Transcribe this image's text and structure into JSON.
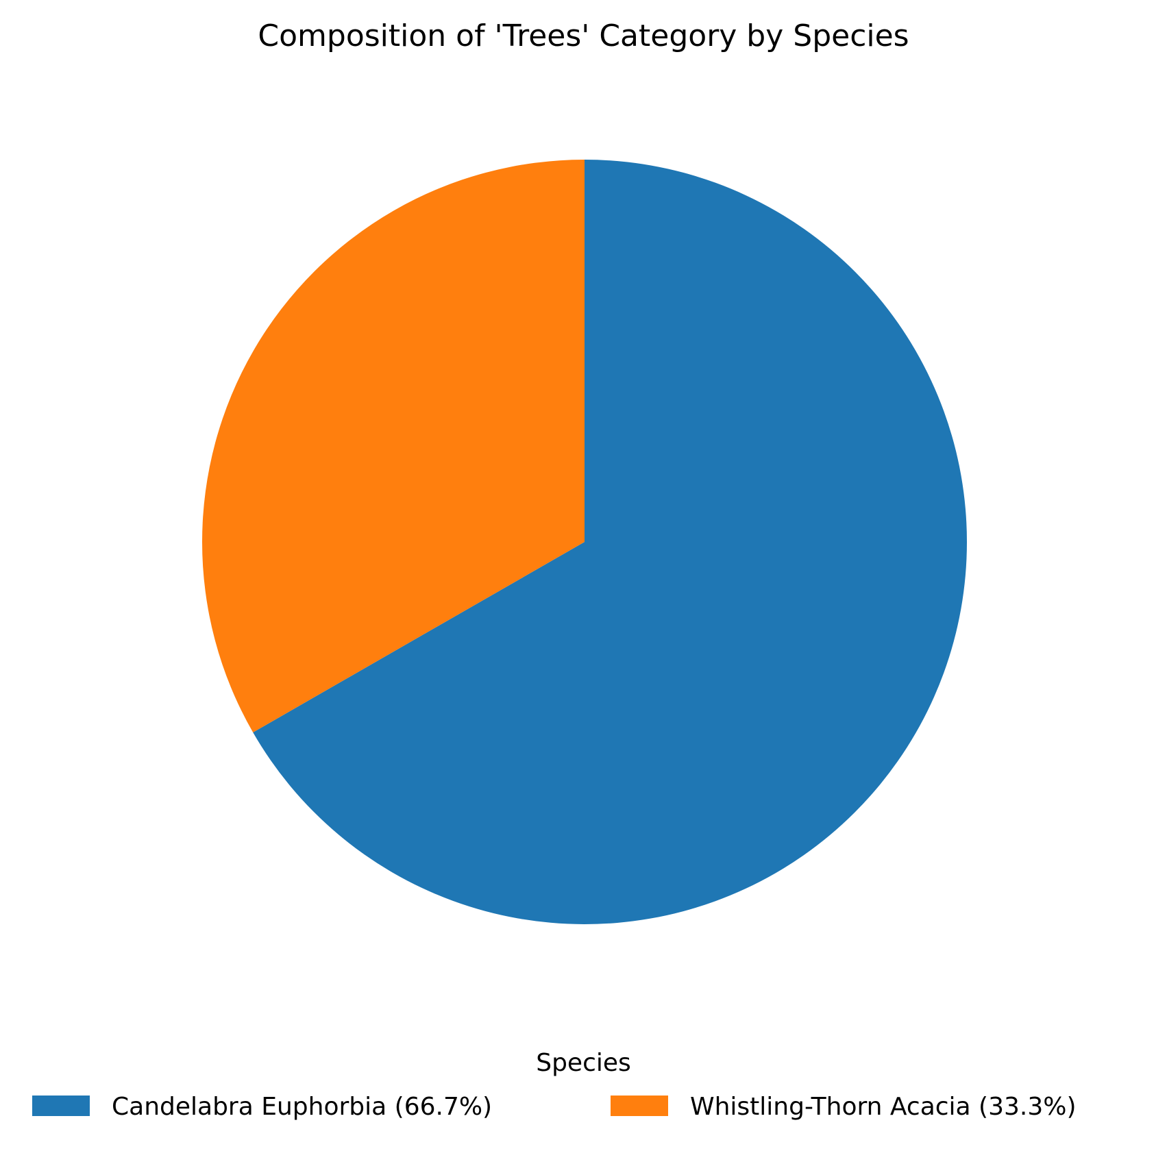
{
  "chart_data": {
    "type": "pie",
    "title": "Composition of 'Trees' Category by Species",
    "legend_title": "Species",
    "legend_position": "bottom",
    "start_angle_deg": 90,
    "direction": "clockwise",
    "slices": [
      {
        "label": "Candelabra Euphorbia",
        "legend_label": "Candelabra Euphorbia (66.7%)",
        "value": 66.7,
        "color": "#1f77b4"
      },
      {
        "label": "Whistling-Thorn Acacia",
        "legend_label": "Whistling-Thorn Acacia (33.3%)",
        "value": 33.3,
        "color": "#ff7f0e"
      }
    ]
  }
}
